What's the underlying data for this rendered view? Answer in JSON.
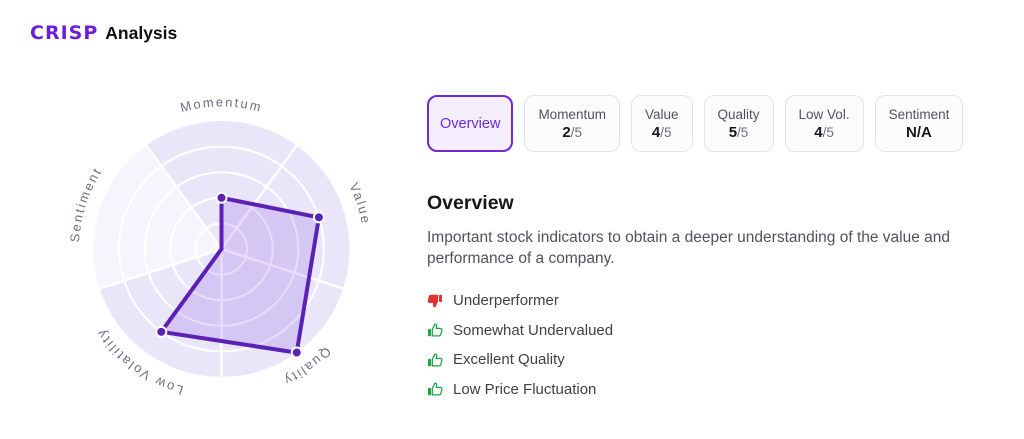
{
  "header": {
    "brand": "CRISP",
    "title": "Analysis"
  },
  "tabs": [
    {
      "label": "Overview",
      "active": true
    },
    {
      "label": "Momentum",
      "value": "2",
      "suffix": "/5"
    },
    {
      "label": "Value",
      "value": "4",
      "suffix": "/5"
    },
    {
      "label": "Quality",
      "value": "5",
      "suffix": "/5"
    },
    {
      "label": "Low Vol.",
      "value": "4",
      "suffix": "/5"
    },
    {
      "label": "Sentiment",
      "value": "N/A",
      "suffix": ""
    }
  ],
  "overview": {
    "heading": "Overview",
    "description": "Important stock indicators to obtain a deeper understanding of the value and performance of a company.",
    "items": [
      {
        "icon": "thumbs-down",
        "sentiment": "negative",
        "label": "Underperformer"
      },
      {
        "icon": "thumbs-up",
        "sentiment": "positive",
        "label": "Somewhat Undervalued"
      },
      {
        "icon": "thumbs-up",
        "sentiment": "positive",
        "label": "Excellent Quality"
      },
      {
        "icon": "thumbs-up",
        "sentiment": "positive",
        "label": "Low Price Fluctuation"
      }
    ]
  },
  "chart_data": {
    "type": "radar",
    "categories": [
      "Momentum",
      "Value",
      "Quality",
      "Low Volatility",
      "Sentiment"
    ],
    "values": [
      2,
      4,
      5,
      4,
      0
    ],
    "max": 5,
    "rings": 5,
    "grid": "on",
    "na_categories": [
      "Sentiment"
    ],
    "colors": {
      "axis_label": "#6b7280",
      "sector": "#e9e6fa",
      "sector_na": "#f6f4fd",
      "grid_line": "#ffffff",
      "series_line": "#5b21b6",
      "series_fill": "rgba(109,40,217,0.16)",
      "point": "#5b21b6",
      "point_halo": "#ffffff"
    }
  },
  "theme": {
    "accent": "#6d28d9",
    "accent_light_bg": "#f4eefe",
    "tab_border": "#e4e4e7",
    "positive": "#1ca345",
    "negative": "#e23434"
  }
}
